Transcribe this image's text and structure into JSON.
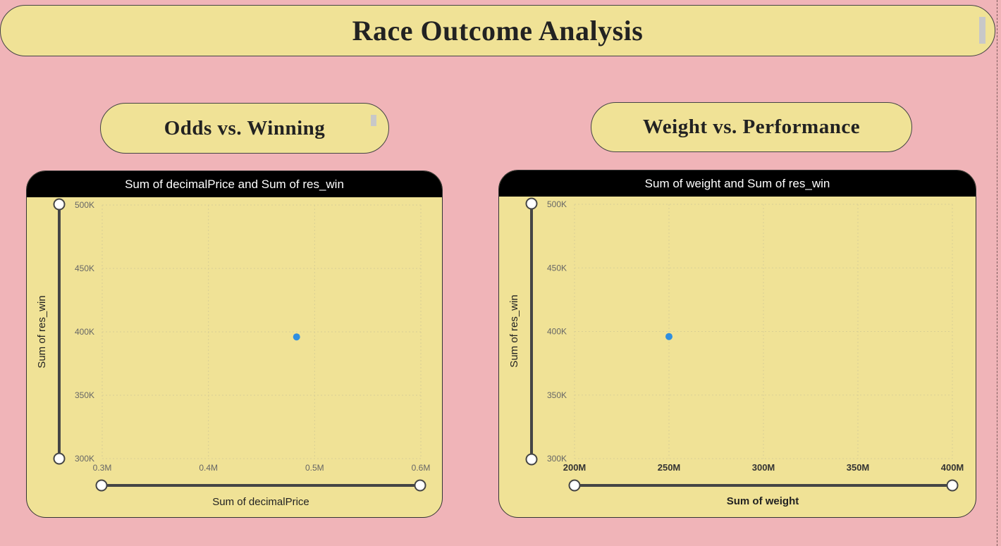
{
  "page": {
    "title": "Race Outcome Analysis"
  },
  "sections": [
    {
      "title": "Odds vs. Winning"
    },
    {
      "title": "Weight vs. Performance"
    }
  ],
  "colors": {
    "background": "#f0b4b8",
    "card": "#f0e296",
    "header": "#000000",
    "point": "#2f8fe0",
    "slider": "#454545"
  },
  "chart_data": [
    {
      "type": "scatter",
      "title": "Sum of decimalPrice and Sum of res_win",
      "xlabel": "Sum of decimalPrice",
      "ylabel": "Sum of res_win",
      "xlim": [
        300000,
        600000
      ],
      "ylim": [
        300000,
        500000
      ],
      "x_ticks": [
        {
          "value": 300000,
          "label": "0.3M"
        },
        {
          "value": 400000,
          "label": "0.4M"
        },
        {
          "value": 500000,
          "label": "0.5M"
        },
        {
          "value": 600000,
          "label": "0.6M"
        }
      ],
      "y_ticks": [
        {
          "value": 300000,
          "label": "300K"
        },
        {
          "value": 350000,
          "label": "350K"
        },
        {
          "value": 400000,
          "label": "400K"
        },
        {
          "value": 450000,
          "label": "450K"
        },
        {
          "value": 500000,
          "label": "500K"
        }
      ],
      "points": [
        {
          "x": 483000,
          "y": 396000
        }
      ],
      "grid": true
    },
    {
      "type": "scatter",
      "title": "Sum of weight and Sum of res_win",
      "xlabel": "Sum of weight",
      "ylabel": "Sum of res_win",
      "xlim": [
        200000000,
        400000000
      ],
      "ylim": [
        300000,
        500000
      ],
      "x_ticks": [
        {
          "value": 200000000,
          "label": "200M"
        },
        {
          "value": 250000000,
          "label": "250M"
        },
        {
          "value": 300000000,
          "label": "300M"
        },
        {
          "value": 350000000,
          "label": "350M"
        },
        {
          "value": 400000000,
          "label": "400M"
        }
      ],
      "y_ticks": [
        {
          "value": 300000,
          "label": "300K"
        },
        {
          "value": 350000,
          "label": "350K"
        },
        {
          "value": 400000,
          "label": "400K"
        },
        {
          "value": 450000,
          "label": "450K"
        },
        {
          "value": 500000,
          "label": "500K"
        }
      ],
      "points": [
        {
          "x": 250000000,
          "y": 396000
        }
      ],
      "grid": true
    }
  ]
}
